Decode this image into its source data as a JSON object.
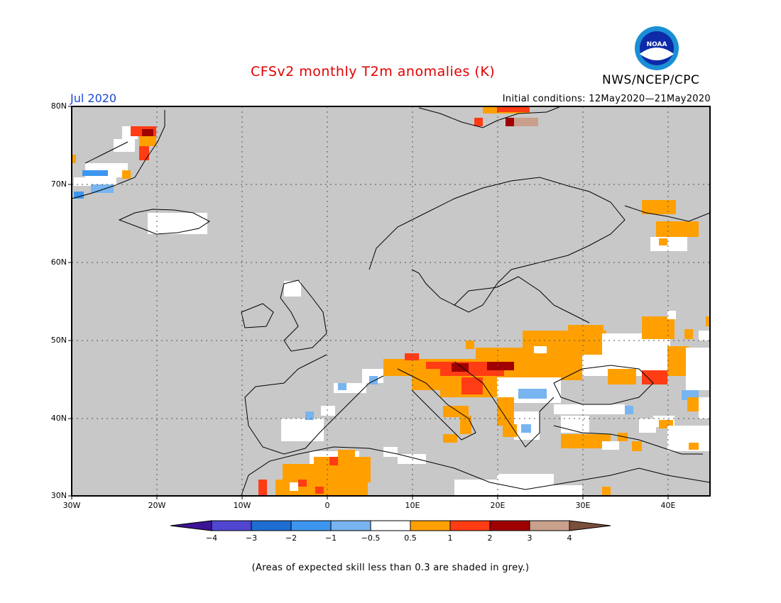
{
  "header": {
    "title": "CFSv2 monthly T2m anomalies (K)",
    "month": "Jul 2020",
    "initial_conditions": "Initial conditions: 12May2020—21May2020",
    "organization": "NWS/NCEP/CPC",
    "logo_text": "NOAA"
  },
  "map": {
    "lat_labels": [
      "80N",
      "70N",
      "60N",
      "50N",
      "40N",
      "30N"
    ],
    "lon_labels": [
      "30W",
      "20W",
      "10W",
      "0",
      "10E",
      "20E",
      "30E",
      "40E"
    ],
    "lat_range": [
      30,
      80
    ],
    "lon_range": [
      -30,
      45
    ],
    "colors": {
      "skill_grey": "#c8c8c8",
      "neutral": "#ffffff",
      "anom_0_5_1": "#ffa000",
      "anom_1_2": "#ff3c14",
      "anom_2_3": "#a00000",
      "anom_3_4": "#c8a08c",
      "anom_m0_5_m1": "#78b4f0",
      "anom_m1_m2": "#3c96f0",
      "anom_m2_m3": "#1e6ed2",
      "anom_m3_m4": "#5046d2"
    }
  },
  "colorbar": {
    "labels": [
      "−4",
      "−3",
      "−2",
      "−1",
      "−0.5",
      "0.5",
      "1",
      "2",
      "3",
      "4"
    ],
    "colors": [
      "#3c1496",
      "#5046d2",
      "#1e6ed2",
      "#3c96f0",
      "#78b4f0",
      "#ffffff",
      "#ffa000",
      "#ff3c14",
      "#a00000",
      "#c8a08c",
      "#7a4f3c"
    ]
  },
  "footer": {
    "note": "(Areas of expected skill less than 0.3 are shaded in grey.)"
  }
}
